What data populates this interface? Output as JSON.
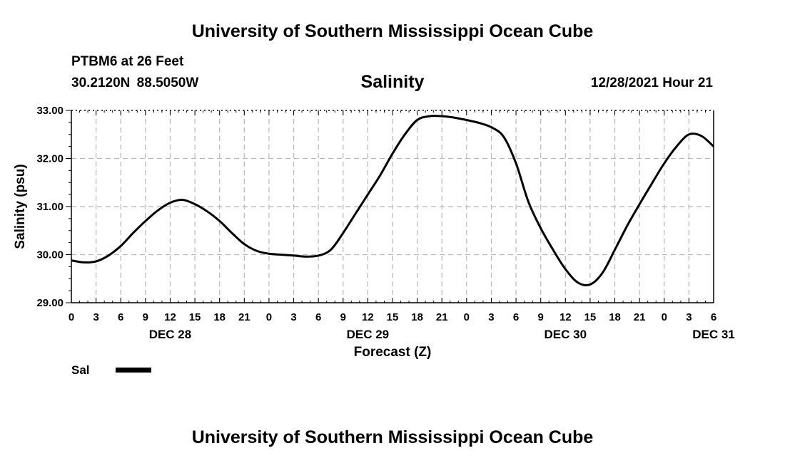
{
  "header": {
    "title": "University of Southern Mississippi Ocean Cube",
    "station": "PTBM6 at 26 Feet",
    "coordinates": "30.2120N  88.5050W",
    "timestamp": "12/28/2021 Hour 21"
  },
  "footer": {
    "title": "University of Southern Mississippi Ocean Cube"
  },
  "legend": {
    "label": "Sal",
    "color": "#000000"
  },
  "chart_data": {
    "type": "line",
    "title": "Salinity",
    "xlabel": "Forecast (Z)",
    "ylabel": "Salinity (psu)",
    "xlim": [
      0,
      78
    ],
    "ylim": [
      29.0,
      33.0
    ],
    "yticks": [
      "29.00",
      "30.00",
      "31.00",
      "32.00",
      "33.00"
    ],
    "xtick_hours": [
      0,
      3,
      6,
      9,
      12,
      15,
      18,
      21,
      24,
      27,
      30,
      33,
      36,
      39,
      42,
      45,
      48,
      51,
      54,
      57,
      60,
      63,
      66,
      69,
      72,
      75,
      78
    ],
    "xtick_labels": [
      "0",
      "3",
      "6",
      "9",
      "12",
      "15",
      "18",
      "21",
      "0",
      "3",
      "6",
      "9",
      "12",
      "15",
      "18",
      "21",
      "0",
      "3",
      "6",
      "9",
      "12",
      "15",
      "18",
      "21",
      "0",
      "3",
      "6"
    ],
    "day_labels": [
      {
        "hour": 12,
        "label": "DEC 28"
      },
      {
        "hour": 36,
        "label": "DEC 29"
      },
      {
        "hour": 60,
        "label": "DEC 30"
      },
      {
        "hour": 78,
        "label": "DEC 31"
      }
    ],
    "grid": true,
    "series": [
      {
        "name": "Sal",
        "x": [
          0,
          1.5,
          3,
          4.5,
          6,
          7.5,
          9,
          10.5,
          12,
          13.5,
          15,
          16.5,
          18,
          19.5,
          21,
          22.5,
          24,
          25.5,
          27,
          28.5,
          30,
          31.5,
          33,
          34.5,
          36,
          37.5,
          39,
          40.5,
          42,
          43.5,
          45,
          46.5,
          48,
          49.5,
          51,
          52.5,
          54,
          55.5,
          57,
          58.5,
          60,
          61.5,
          63,
          64.5,
          66,
          67.5,
          69,
          70.5,
          72,
          73.5,
          75,
          76.5,
          78
        ],
        "y": [
          29.88,
          29.84,
          29.86,
          29.98,
          30.18,
          30.45,
          30.7,
          30.92,
          31.08,
          31.14,
          31.05,
          30.9,
          30.7,
          30.45,
          30.22,
          30.08,
          30.02,
          30.0,
          29.98,
          29.96,
          29.98,
          30.1,
          30.45,
          30.85,
          31.25,
          31.65,
          32.1,
          32.5,
          32.8,
          32.88,
          32.88,
          32.85,
          32.8,
          32.74,
          32.65,
          32.45,
          31.9,
          31.1,
          30.55,
          30.1,
          29.7,
          29.42,
          29.38,
          29.62,
          30.1,
          30.6,
          31.05,
          31.48,
          31.9,
          32.25,
          32.5,
          32.47,
          32.25
        ]
      }
    ]
  }
}
